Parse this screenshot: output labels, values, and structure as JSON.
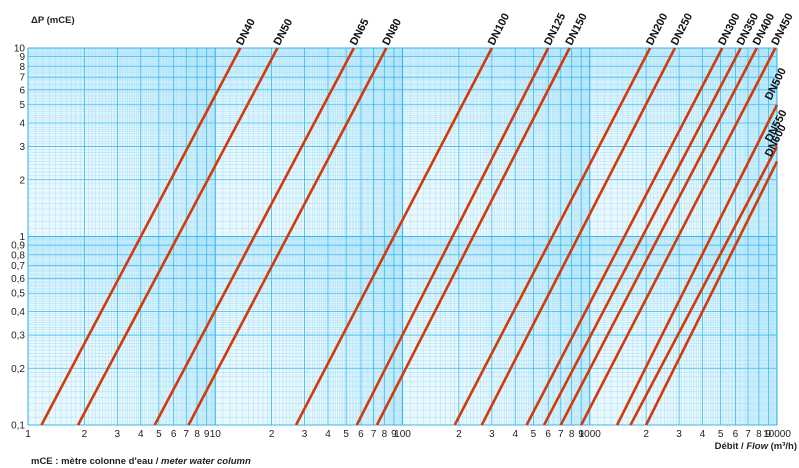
{
  "chart_data": {
    "type": "line",
    "title": "",
    "ylabel": "ΔP (mCE)",
    "xlabel_prefix": "Débit / ",
    "xlabel_italic": "Flow",
    "xlabel_unit": " (m³/h)",
    "note_prefix": "mCE : mètre colonne d'eau / ",
    "note_italic": "meter water column",
    "x_scale": "log",
    "y_scale": "log",
    "xlim": [
      1,
      10000
    ],
    "ylim": [
      0.1,
      10
    ],
    "grid": true,
    "x_ticks": [
      {
        "v": 1,
        "label": "1"
      },
      {
        "v": 2,
        "label": "2"
      },
      {
        "v": 3,
        "label": "3"
      },
      {
        "v": 4,
        "label": "4"
      },
      {
        "v": 5,
        "label": "5"
      },
      {
        "v": 6,
        "label": "6"
      },
      {
        "v": 7,
        "label": "7"
      },
      {
        "v": 8,
        "label": "8"
      },
      {
        "v": 9,
        "label": "9"
      },
      {
        "v": 10,
        "label": "10"
      },
      {
        "v": 20,
        "label": "2"
      },
      {
        "v": 30,
        "label": "3"
      },
      {
        "v": 40,
        "label": "4"
      },
      {
        "v": 50,
        "label": "5"
      },
      {
        "v": 60,
        "label": "6"
      },
      {
        "v": 70,
        "label": "7"
      },
      {
        "v": 80,
        "label": "8"
      },
      {
        "v": 90,
        "label": "9"
      },
      {
        "v": 100,
        "label": "100"
      },
      {
        "v": 200,
        "label": "2"
      },
      {
        "v": 300,
        "label": "3"
      },
      {
        "v": 400,
        "label": "4"
      },
      {
        "v": 500,
        "label": "5"
      },
      {
        "v": 600,
        "label": "6"
      },
      {
        "v": 700,
        "label": "7"
      },
      {
        "v": 800,
        "label": "8"
      },
      {
        "v": 900,
        "label": "9"
      },
      {
        "v": 1000,
        "label": "1000"
      },
      {
        "v": 2000,
        "label": "2"
      },
      {
        "v": 3000,
        "label": "3"
      },
      {
        "v": 4000,
        "label": "4"
      },
      {
        "v": 5000,
        "label": "5"
      },
      {
        "v": 6000,
        "label": "6"
      },
      {
        "v": 7000,
        "label": "7"
      },
      {
        "v": 8000,
        "label": "8"
      },
      {
        "v": 9000,
        "label": "9"
      },
      {
        "v": 10000,
        "label": "10000"
      }
    ],
    "y_ticks": [
      {
        "v": 0.1,
        "label": "0,1"
      },
      {
        "v": 0.2,
        "label": "0,2"
      },
      {
        "v": 0.3,
        "label": "0,3"
      },
      {
        "v": 0.4,
        "label": "0,4"
      },
      {
        "v": 0.5,
        "label": "0,5"
      },
      {
        "v": 0.6,
        "label": "0,6"
      },
      {
        "v": 0.7,
        "label": "0,7"
      },
      {
        "v": 0.8,
        "label": "0,8"
      },
      {
        "v": 0.9,
        "label": "0,9"
      },
      {
        "v": 1,
        "label": "1"
      },
      {
        "v": 2,
        "label": "2"
      },
      {
        "v": 3,
        "label": "3"
      },
      {
        "v": 4,
        "label": "4"
      },
      {
        "v": 5,
        "label": "5"
      },
      {
        "v": 6,
        "label": "6"
      },
      {
        "v": 7,
        "label": "7"
      },
      {
        "v": 8,
        "label": "8"
      },
      {
        "v": 9,
        "label": "9"
      },
      {
        "v": 10,
        "label": "10"
      }
    ],
    "series": [
      {
        "name": "DN40",
        "x": [
          1.18,
          13.6
        ],
        "y": [
          0.1,
          10
        ]
      },
      {
        "name": "DN50",
        "x": [
          1.85,
          21.5
        ],
        "y": [
          0.1,
          10
        ]
      },
      {
        "name": "DN65",
        "x": [
          4.75,
          55
        ],
        "y": [
          0.1,
          10
        ]
      },
      {
        "name": "DN80",
        "x": [
          7.2,
          82
        ],
        "y": [
          0.1,
          10
        ]
      },
      {
        "name": "DN100",
        "x": [
          27,
          300
        ],
        "y": [
          0.1,
          10
        ]
      },
      {
        "name": "DN125",
        "x": [
          57,
          600
        ],
        "y": [
          0.1,
          10
        ]
      },
      {
        "name": "DN150",
        "x": [
          73,
          780
        ],
        "y": [
          0.1,
          10
        ]
      },
      {
        "name": "DN200",
        "x": [
          190,
          2100
        ],
        "y": [
          0.1,
          10
        ]
      },
      {
        "name": "DN250",
        "x": [
          265,
          2850
        ],
        "y": [
          0.1,
          10
        ]
      },
      {
        "name": "DN300",
        "x": [
          460,
          5100
        ],
        "y": [
          0.1,
          10
        ]
      },
      {
        "name": "DN350",
        "x": [
          570,
          6400
        ],
        "y": [
          0.1,
          10
        ]
      },
      {
        "name": "DN400",
        "x": [
          700,
          7800
        ],
        "y": [
          0.1,
          10
        ]
      },
      {
        "name": "DN450",
        "x": [
          900,
          9800
        ],
        "y": [
          0.1,
          10
        ]
      },
      {
        "name": "DN500",
        "x": [
          1400,
          10000
        ],
        "y": [
          0.1,
          5.0
        ]
      },
      {
        "name": "DN550",
        "x": [
          1650,
          10000
        ],
        "y": [
          0.1,
          3.0
        ]
      },
      {
        "name": "DN600",
        "x": [
          2000,
          10000
        ],
        "y": [
          0.1,
          2.5
        ]
      }
    ],
    "line_color": "#d13b0c",
    "grid_color": "#35b8ef",
    "grid_fine_color": "#a5e0f9",
    "plot_background": "#eaf8fe"
  }
}
